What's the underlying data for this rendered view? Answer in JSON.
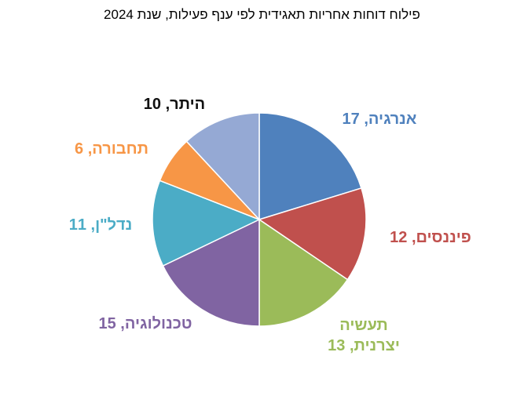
{
  "chart_data": {
    "type": "pie",
    "title": "פילוח דוחות אחריות תאגידית לפי ענף פעילות, שנת 2024",
    "values": [
      17,
      12,
      13,
      15,
      11,
      6,
      10
    ],
    "value_labels": [
      "אנרגיה, 17",
      "פיננסים, 12",
      "תעשיה יצרנית, 13",
      "טכנולוגיה, 15",
      "נדל\"ן, 11",
      "תחבורה, 6",
      "היתר, 10"
    ],
    "colors": [
      "#4f81bd",
      "#c0504d",
      "#9bbb59",
      "#8064a2",
      "#4bacc6",
      "#f79646",
      "#95a9d4"
    ],
    "label_colors": [
      "#4f81bd",
      "#c0504d",
      "#9bbb59",
      "#8064a2",
      "#4bacc6",
      "#f79646",
      "#111111"
    ]
  }
}
